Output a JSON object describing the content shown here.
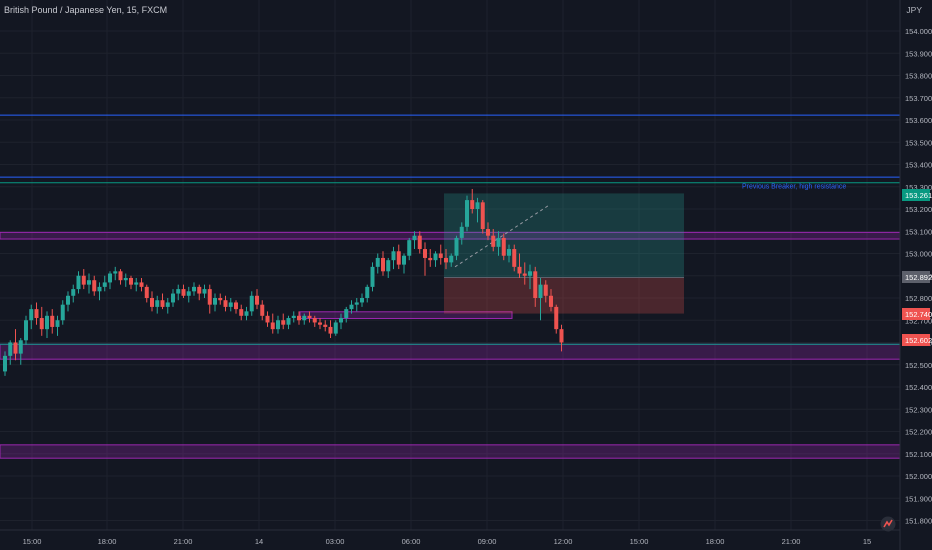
{
  "header": {
    "title": "British Pound / Japanese Yen, 15, FXCM",
    "currency": "JPY"
  },
  "colors": {
    "background": "#131722",
    "up": "#26a69a",
    "down": "#ef5350",
    "blue_line": "#2962ff",
    "green_line": "#089981",
    "purple_zone": "#9c27b0",
    "annotation": "#2962ff"
  },
  "icons": [
    "tradingview-logo-icon"
  ],
  "chart_data": {
    "type": "candlestick",
    "interval_minutes": 15,
    "ylim": [
      151.75,
      154.15
    ],
    "y_ticks": [
      "154.000",
      "153.900",
      "153.800",
      "153.700",
      "153.600",
      "153.500",
      "153.400",
      "153.300",
      "153.200",
      "153.100",
      "153.000",
      "152.900",
      "152.800",
      "152.700",
      "152.600",
      "152.500",
      "152.400",
      "152.300",
      "152.200",
      "152.100",
      "152.000",
      "151.900",
      "151.800"
    ],
    "x_ticks": [
      "15:00",
      "18:00",
      "21:00",
      "14",
      "03:00",
      "06:00",
      "09:00",
      "12:00",
      "15:00",
      "18:00",
      "21:00",
      "15"
    ],
    "price_labels": [
      {
        "text": "153.261",
        "color": "#089981"
      },
      {
        "text": "152.892",
        "color": "#5d606b"
      },
      {
        "text": "152.740",
        "color": "#ef5350"
      },
      {
        "text": "152.602",
        "color": "#ef5350"
      }
    ],
    "horizontal_lines": [
      {
        "price": 153.622,
        "color": "#2962ff"
      },
      {
        "price": 153.343,
        "color": "#2962ff"
      },
      {
        "price": 153.318,
        "color": "#089981"
      },
      {
        "price": 152.592,
        "color": "#089981"
      }
    ],
    "zones": [
      {
        "from": 153.095,
        "to": 153.065,
        "color": "#9c27b0"
      },
      {
        "from": 152.592,
        "to": 152.525,
        "color": "#9c27b0"
      },
      {
        "from": 152.14,
        "to": 152.08,
        "color": "#9c27b0"
      }
    ],
    "position_box": {
      "entry": 152.892,
      "target": 153.27,
      "stop": 152.73
    },
    "annotations": [
      {
        "text": "Previous Breaker, high resistance",
        "price": 153.31
      }
    ],
    "candles": [
      [
        152.47,
        152.56,
        152.45,
        152.54
      ],
      [
        152.54,
        152.61,
        152.5,
        152.6
      ],
      [
        152.6,
        152.66,
        152.52,
        152.55
      ],
      [
        152.55,
        152.62,
        152.5,
        152.61
      ],
      [
        152.61,
        152.72,
        152.59,
        152.7
      ],
      [
        152.7,
        152.77,
        152.66,
        152.75
      ],
      [
        152.75,
        152.78,
        152.68,
        152.71
      ],
      [
        152.71,
        152.76,
        152.63,
        152.66
      ],
      [
        152.66,
        152.74,
        152.62,
        152.72
      ],
      [
        152.72,
        152.75,
        152.64,
        152.67
      ],
      [
        152.67,
        152.72,
        152.63,
        152.7
      ],
      [
        152.7,
        152.79,
        152.68,
        152.77
      ],
      [
        152.77,
        152.83,
        152.74,
        152.81
      ],
      [
        152.81,
        152.86,
        152.78,
        152.84
      ],
      [
        152.84,
        152.92,
        152.82,
        152.9
      ],
      [
        152.9,
        152.93,
        152.84,
        152.86
      ],
      [
        152.86,
        152.91,
        152.82,
        152.88
      ],
      [
        152.88,
        152.9,
        152.81,
        152.83
      ],
      [
        152.83,
        152.87,
        152.79,
        152.85
      ],
      [
        152.85,
        152.9,
        152.83,
        152.87
      ],
      [
        152.87,
        152.92,
        152.84,
        152.91
      ],
      [
        152.91,
        152.94,
        152.88,
        152.92
      ],
      [
        152.92,
        152.93,
        152.86,
        152.88
      ],
      [
        152.88,
        152.91,
        152.85,
        152.89
      ],
      [
        152.89,
        152.9,
        152.84,
        152.86
      ],
      [
        152.86,
        152.89,
        152.83,
        152.87
      ],
      [
        152.87,
        152.89,
        152.83,
        152.85
      ],
      [
        152.85,
        152.86,
        152.78,
        152.8
      ],
      [
        152.8,
        152.83,
        152.74,
        152.76
      ],
      [
        152.76,
        152.81,
        152.73,
        152.79
      ],
      [
        152.79,
        152.82,
        152.75,
        152.76
      ],
      [
        152.76,
        152.8,
        152.73,
        152.78
      ],
      [
        152.78,
        152.84,
        152.76,
        152.82
      ],
      [
        152.82,
        152.86,
        152.79,
        152.84
      ],
      [
        152.84,
        152.86,
        152.8,
        152.81
      ],
      [
        152.81,
        152.85,
        152.78,
        152.83
      ],
      [
        152.83,
        152.87,
        152.81,
        152.85
      ],
      [
        152.85,
        152.86,
        152.79,
        152.82
      ],
      [
        152.82,
        152.86,
        152.8,
        152.84
      ],
      [
        152.84,
        152.86,
        152.73,
        152.77
      ],
      [
        152.77,
        152.82,
        152.74,
        152.8
      ],
      [
        152.8,
        152.82,
        152.77,
        152.79
      ],
      [
        152.79,
        152.81,
        152.74,
        152.76
      ],
      [
        152.76,
        152.8,
        152.74,
        152.78
      ],
      [
        152.78,
        152.79,
        152.73,
        152.75
      ],
      [
        152.75,
        152.77,
        152.7,
        152.72
      ],
      [
        152.72,
        152.76,
        152.7,
        152.74
      ],
      [
        152.74,
        152.83,
        152.72,
        152.81
      ],
      [
        152.81,
        152.84,
        152.75,
        152.77
      ],
      [
        152.77,
        152.79,
        152.7,
        152.72
      ],
      [
        152.72,
        152.74,
        152.67,
        152.69
      ],
      [
        152.69,
        152.73,
        152.64,
        152.66
      ],
      [
        152.66,
        152.72,
        152.64,
        152.7
      ],
      [
        152.7,
        152.73,
        152.66,
        152.68
      ],
      [
        152.68,
        152.72,
        152.66,
        152.71
      ],
      [
        152.71,
        152.74,
        152.69,
        152.72
      ],
      [
        152.72,
        152.74,
        152.68,
        152.7
      ],
      [
        152.7,
        152.73,
        152.68,
        152.72
      ],
      [
        152.72,
        152.74,
        152.69,
        152.71
      ],
      [
        152.71,
        152.72,
        152.67,
        152.69
      ],
      [
        152.69,
        152.71,
        152.66,
        152.68
      ],
      [
        152.68,
        152.7,
        152.65,
        152.67
      ],
      [
        152.67,
        152.7,
        152.62,
        152.64
      ],
      [
        152.64,
        152.7,
        152.63,
        152.69
      ],
      [
        152.69,
        152.73,
        152.66,
        152.71
      ],
      [
        152.71,
        152.76,
        152.69,
        152.75
      ],
      [
        152.75,
        152.79,
        152.73,
        152.77
      ],
      [
        152.77,
        152.8,
        152.74,
        152.78
      ],
      [
        152.78,
        152.82,
        152.76,
        152.8
      ],
      [
        152.8,
        152.86,
        152.78,
        152.85
      ],
      [
        152.85,
        152.96,
        152.83,
        152.94
      ],
      [
        152.94,
        153.0,
        152.91,
        152.98
      ],
      [
        152.98,
        153.01,
        152.9,
        152.92
      ],
      [
        152.92,
        152.98,
        152.89,
        152.97
      ],
      [
        152.97,
        153.03,
        152.93,
        153.01
      ],
      [
        153.01,
        153.04,
        152.93,
        152.95
      ],
      [
        152.95,
        153.0,
        152.91,
        152.99
      ],
      [
        152.99,
        153.07,
        152.97,
        153.06
      ],
      [
        153.06,
        153.1,
        153.02,
        153.08
      ],
      [
        153.08,
        153.1,
        153.0,
        153.02
      ],
      [
        153.02,
        153.05,
        152.9,
        152.98
      ],
      [
        152.98,
        153.02,
        152.94,
        152.97
      ],
      [
        152.97,
        153.01,
        152.94,
        153.0
      ],
      [
        153.0,
        153.04,
        152.95,
        152.98
      ],
      [
        152.98,
        153.02,
        152.93,
        152.96
      ],
      [
        152.96,
        153.0,
        152.94,
        152.99
      ],
      [
        152.99,
        153.08,
        152.97,
        153.07
      ],
      [
        153.07,
        153.14,
        153.04,
        153.12
      ],
      [
        153.12,
        153.26,
        153.1,
        153.24
      ],
      [
        153.24,
        153.29,
        153.18,
        153.2
      ],
      [
        153.2,
        153.25,
        153.14,
        153.23
      ],
      [
        153.23,
        153.24,
        153.09,
        153.11
      ],
      [
        153.11,
        153.14,
        153.06,
        153.08
      ],
      [
        153.08,
        153.11,
        153.01,
        153.03
      ],
      [
        153.03,
        153.1,
        152.99,
        153.07
      ],
      [
        153.07,
        153.09,
        152.97,
        152.99
      ],
      [
        152.99,
        153.04,
        152.96,
        153.02
      ],
      [
        153.02,
        153.04,
        152.92,
        152.94
      ],
      [
        152.94,
        153.0,
        152.89,
        152.91
      ],
      [
        152.91,
        152.96,
        152.86,
        152.9
      ],
      [
        152.9,
        152.95,
        152.84,
        152.92
      ],
      [
        152.92,
        152.94,
        152.76,
        152.8
      ],
      [
        152.8,
        152.89,
        152.7,
        152.86
      ],
      [
        152.86,
        152.88,
        152.78,
        152.81
      ],
      [
        152.81,
        152.84,
        152.74,
        152.76
      ],
      [
        152.76,
        152.77,
        152.64,
        152.66
      ],
      [
        152.66,
        152.68,
        152.56,
        152.6
      ]
    ]
  }
}
